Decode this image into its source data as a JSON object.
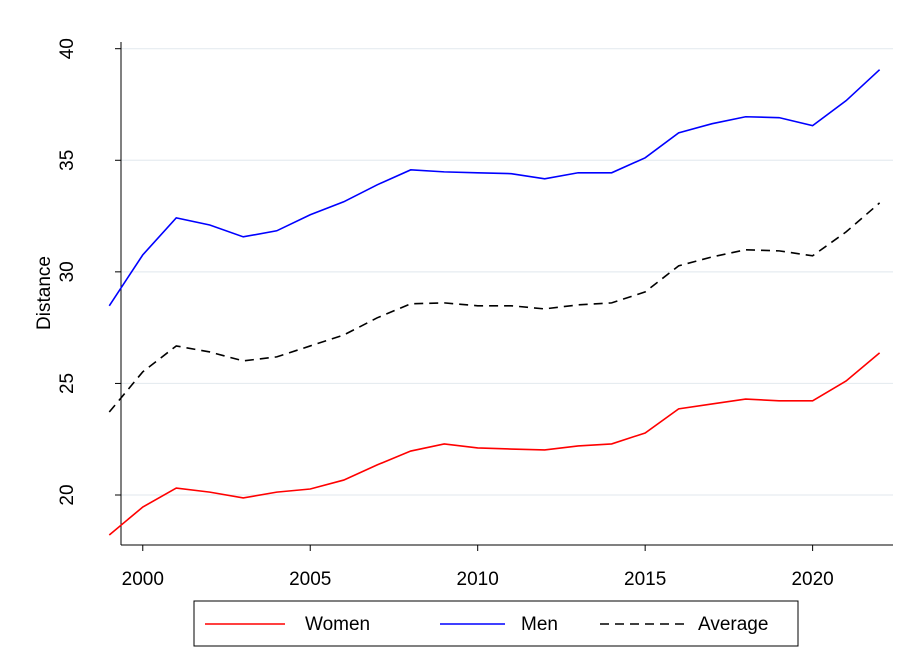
{
  "chart_data": {
    "type": "line",
    "y_label": "Distance",
    "x": [
      1999,
      2000,
      2001,
      2002,
      2003,
      2004,
      2005,
      2006,
      2007,
      2008,
      2009,
      2010,
      2011,
      2012,
      2013,
      2014,
      2015,
      2016,
      2017,
      2018,
      2019,
      2020,
      2021,
      2022
    ],
    "series": [
      {
        "name": "Women",
        "color": "#ff0000",
        "linestyle": "solid",
        "values": [
          18.21,
          19.46,
          20.31,
          20.13,
          19.87,
          20.13,
          20.27,
          20.67,
          21.35,
          21.97,
          22.29,
          22.11,
          22.06,
          22.02,
          22.2,
          22.29,
          22.78,
          23.86,
          24.08,
          24.3,
          24.22,
          24.22,
          25.11,
          26.37
        ]
      },
      {
        "name": "Men",
        "color": "#0000ff",
        "linestyle": "solid",
        "values": [
          28.48,
          30.76,
          32.42,
          32.1,
          31.57,
          31.84,
          32.56,
          33.14,
          33.9,
          34.57,
          34.48,
          34.44,
          34.4,
          34.17,
          34.44,
          34.44,
          35.11,
          36.23,
          36.64,
          36.95,
          36.91,
          36.55,
          37.67,
          39.06
        ]
      },
      {
        "name": "Average",
        "color": "#000000",
        "linestyle": "dashed",
        "values": [
          23.72,
          25.52,
          26.68,
          26.41,
          26.01,
          26.19,
          26.68,
          27.17,
          27.94,
          28.57,
          28.61,
          28.48,
          28.48,
          28.34,
          28.52,
          28.61,
          29.1,
          30.27,
          30.67,
          30.99,
          30.94,
          30.72,
          31.79,
          33.09
        ]
      }
    ],
    "xlim": [
      1999.35,
      2022.4
    ],
    "xticks": [
      2000,
      2005,
      2010,
      2015,
      2020
    ],
    "ylim": [
      17.76,
      40.3
    ],
    "yticks": [
      20,
      25,
      30,
      35,
      40
    ],
    "grid": true,
    "legend": "bottom"
  }
}
